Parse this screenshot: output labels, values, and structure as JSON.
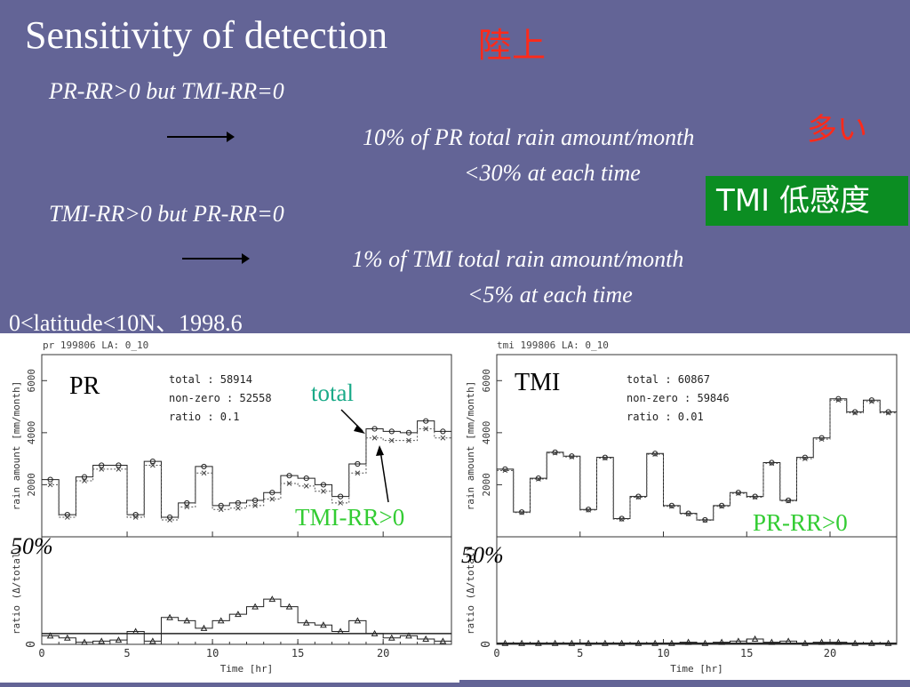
{
  "slide": {
    "title": "Sensitivity of detection",
    "title_jp": "陸上",
    "line1": "PR-RR>0 but TMI-RR=0",
    "line2": "10% of PR total rain amount/month",
    "line2_jp": "多い",
    "line3": "<30% at each time",
    "line4": "TMI-RR>0 but PR-RR=0",
    "line5": "1% of TMI total rain amount/month",
    "line6": "<5% at each time",
    "badge": "TMI 低感度",
    "note": "0<latitude<10N、1998.6"
  },
  "colors": {
    "background": "#636496",
    "title_jp": "#ff2a1a",
    "badge_bg": "#0b8d22",
    "annotation_total": "#1aaa88",
    "annotation_green": "#33cc33"
  },
  "chart_data": [
    {
      "type": "line",
      "header": "pr 199806 LA: 0_10",
      "panel_label": "PR",
      "stats": [
        "total : 58914",
        "non-zero : 52558",
        "ratio : 0.1"
      ],
      "annotation_total": "total",
      "annotation_other": "TMI-RR>0",
      "annotation_pct": "50%",
      "xlabel": "Time [hr]",
      "ylabel_top": "rain amount [mm/month]",
      "ylabel_bottom": "ratio (Δ/total)",
      "xticks": [
        "0",
        "5",
        "10",
        "15",
        "20"
      ],
      "yticks_top": [
        "2000",
        "4000",
        "6000"
      ],
      "ytick_bottom": "0",
      "xlim": [
        0,
        24
      ],
      "ylim_top": [
        0,
        7000
      ],
      "ylim_bottom": [
        0,
        1
      ],
      "x": [
        0,
        1,
        2,
        3,
        4,
        5,
        6,
        7,
        8,
        9,
        10,
        11,
        12,
        13,
        14,
        15,
        16,
        17,
        18,
        19,
        20,
        21,
        22,
        23
      ],
      "series": [
        {
          "name": "total",
          "values": [
            2200,
            850,
            2300,
            2750,
            2750,
            850,
            2900,
            750,
            1300,
            2700,
            1200,
            1300,
            1400,
            1700,
            2350,
            2250,
            2000,
            1550,
            2800,
            4150,
            4050,
            4000,
            4450,
            4050
          ]
        },
        {
          "name": "non-zero",
          "values": [
            2000,
            750,
            2150,
            2600,
            2600,
            750,
            2750,
            650,
            1150,
            2450,
            1050,
            1100,
            1200,
            1450,
            2050,
            1950,
            1750,
            1300,
            2450,
            3800,
            3700,
            3700,
            4150,
            3800
          ]
        }
      ],
      "ratio": [
        0.08,
        0.06,
        0.02,
        0.03,
        0.04,
        0.12,
        0.03,
        0.25,
        0.22,
        0.15,
        0.22,
        0.28,
        0.35,
        0.42,
        0.35,
        0.2,
        0.18,
        0.12,
        0.22,
        0.1,
        0.06,
        0.08,
        0.05,
        0.03
      ],
      "ratio_ref": 0.1
    },
    {
      "type": "line",
      "header": "tmi 199806 LA: 0_10",
      "panel_label": "TMI",
      "stats": [
        "total : 60867",
        "non-zero : 59846",
        "ratio : 0.01"
      ],
      "annotation_other": "PR-RR>0",
      "annotation_pct": "50%",
      "xlabel": "Time [hr]",
      "ylabel_top": "rain amount [mm/month]",
      "ylabel_bottom": "ratio (Δ/total)",
      "xticks": [
        "0",
        "5",
        "10",
        "15",
        "20"
      ],
      "yticks_top": [
        "2000",
        "4000",
        "6000"
      ],
      "ytick_bottom": "0",
      "xlim": [
        0,
        24
      ],
      "ylim_top": [
        0,
        7000
      ],
      "ylim_bottom": [
        0,
        1
      ],
      "x": [
        0,
        1,
        2,
        3,
        4,
        5,
        6,
        7,
        8,
        9,
        10,
        11,
        12,
        13,
        14,
        15,
        16,
        17,
        18,
        19,
        20,
        21,
        22,
        23
      ],
      "series": [
        {
          "name": "total",
          "values": [
            2600,
            950,
            2250,
            3250,
            3100,
            1050,
            3050,
            700,
            1550,
            3200,
            1200,
            900,
            650,
            1200,
            1700,
            1550,
            2850,
            1400,
            3050,
            3800,
            5300,
            4800,
            5250,
            4800
          ]
        },
        {
          "name": "non-zero",
          "values": [
            2550,
            930,
            2220,
            3220,
            3070,
            1030,
            3020,
            680,
            1520,
            3170,
            1170,
            880,
            630,
            1170,
            1670,
            1520,
            2820,
            1380,
            3000,
            3750,
            5250,
            4760,
            5200,
            4760
          ]
        }
      ],
      "ratio": [
        0.01,
        0.01,
        0.01,
        0.01,
        0.01,
        0.01,
        0.01,
        0.01,
        0.01,
        0.01,
        0.01,
        0.02,
        0.01,
        0.02,
        0.03,
        0.05,
        0.02,
        0.03,
        0.01,
        0.02,
        0.02,
        0.01,
        0.01,
        0.01
      ],
      "ratio_ref": 0.01
    }
  ]
}
